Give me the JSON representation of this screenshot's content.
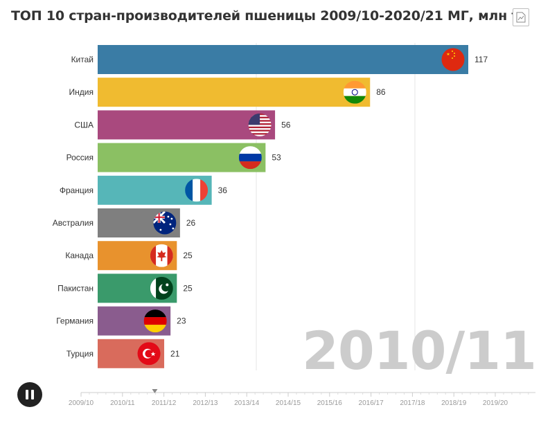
{
  "title": "ТОП 10 стран-производителей пшеницы 2009/10-2020/21 МГ, млн т",
  "watermark": "2010/11",
  "controls": {
    "play_state": "pause-icon",
    "export_icon": "chart-export-icon"
  },
  "colors": {
    "Китай": "#3a7ca5",
    "Индия": "#f0bb30",
    "США": "#a9497e",
    "Россия": "#8bc063",
    "Франция": "#56b6b8",
    "Австралия": "#7f7f7f",
    "Канада": "#e8922d",
    "Пакистан": "#3a9a6b",
    "Германия": "#8a5c8e",
    "Турция": "#d96b5c"
  },
  "chart_data": {
    "type": "bar",
    "orientation": "horizontal",
    "title": "ТОП 10 стран-производителей пшеницы 2009/10-2020/21 МГ, млн т",
    "period": "2010/11",
    "categories": [
      "Китай",
      "Индия",
      "США",
      "Россия",
      "Франция",
      "Австралия",
      "Канада",
      "Пакистан",
      "Германия",
      "Турция"
    ],
    "values": [
      117,
      86,
      56,
      53,
      36,
      26,
      25,
      25,
      23,
      21
    ],
    "value_labels": [
      "117",
      "86",
      "56",
      "53",
      "36",
      "26",
      "25",
      "25",
      "23",
      "21"
    ],
    "flags": [
      "china-flag-icon",
      "india-flag-icon",
      "usa-flag-icon",
      "russia-flag-icon",
      "france-flag-icon",
      "australia-flag-icon",
      "canada-flag-icon",
      "pakistan-flag-icon",
      "germany-flag-icon",
      "turkey-flag-icon"
    ],
    "xlim": [
      0,
      117
    ],
    "grid": true,
    "timeline": {
      "labels": [
        "2009/10",
        "2010/11",
        "2011/12",
        "2012/13",
        "2013/14",
        "2014/15",
        "2015/16",
        "2016/17",
        "2017/18",
        "2018/19",
        "2019/20"
      ],
      "current_position": 1.78
    }
  }
}
